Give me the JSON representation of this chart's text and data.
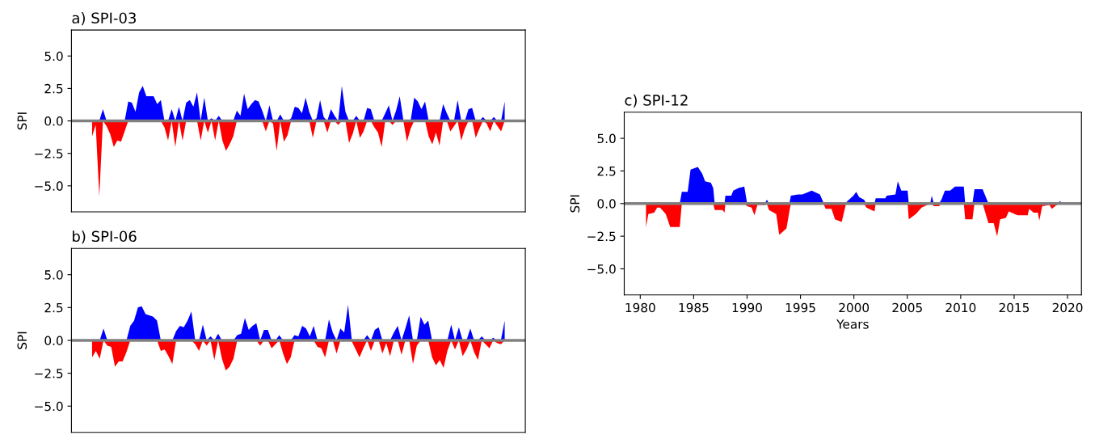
{
  "chart_data": [
    {
      "type": "area",
      "title": "a) SPI-03",
      "ylabel": "SPI",
      "ylim": [
        -7,
        7
      ],
      "yticks": [
        {
          "value": -5,
          "label": "−5.0"
        },
        {
          "value": -2.5,
          "label": "−2.5"
        },
        {
          "value": 0,
          "label": "0.0"
        },
        {
          "value": 2.5,
          "label": "2.5"
        },
        {
          "value": 5,
          "label": "5.0"
        }
      ],
      "tick_labels": "y",
      "categories": [
        null,
        null,
        null,
        null,
        null,
        null,
        null,
        null,
        null,
        null,
        null,
        null,
        null,
        null,
        null,
        null,
        null,
        null,
        null,
        null,
        null,
        null,
        null,
        null,
        null,
        null,
        null,
        null,
        null,
        null,
        null,
        null,
        null,
        null,
        null,
        null,
        null,
        null,
        null,
        null,
        null,
        null,
        null,
        null,
        null,
        null,
        null,
        null,
        null,
        null,
        null,
        null,
        null,
        null,
        null,
        null,
        null,
        null,
        null,
        null,
        null,
        null,
        null,
        null,
        null,
        null,
        null,
        null,
        null,
        null,
        null,
        null,
        null,
        null,
        null,
        null,
        null,
        null,
        null,
        null,
        null,
        null,
        null,
        null,
        null,
        null,
        null,
        null,
        null,
        null,
        null,
        null,
        null,
        null,
        null,
        null,
        null,
        null,
        null,
        null,
        null,
        null,
        null,
        null,
        null,
        null,
        null,
        null,
        null,
        null,
        null,
        null,
        null,
        null,
        null
      ],
      "series": [
        {
          "color": "#0000ff",
          "values": [
            0,
            0,
            0,
            0.9,
            0,
            0,
            0,
            0,
            0,
            0,
            1.5,
            1.4,
            0.7,
            2.2,
            2.7,
            1.9,
            1.9,
            1.9,
            1.3,
            1.6,
            0,
            0,
            0.9,
            0,
            1.1,
            0,
            1.4,
            1.6,
            1.1,
            2.2,
            0,
            1.8,
            0,
            0.2,
            0,
            0.4,
            0,
            0,
            0,
            0,
            0.8,
            0.4,
            2.1,
            0.9,
            1.3,
            1.6,
            1.5,
            0.8,
            0,
            1.2,
            0,
            0,
            0.5,
            0,
            0,
            0.2,
            1.1,
            1.0,
            0.6,
            1.8,
            0.7,
            0,
            0.2,
            1.6,
            0.3,
            0,
            0.9,
            0.4,
            0,
            2.7,
            0.7,
            0,
            0,
            0.4,
            0,
            0,
            1.0,
            0.9,
            0,
            0,
            0,
            0.6,
            1.2,
            0,
            0.8,
            1.9,
            0.1,
            0,
            0,
            1.8,
            1.5,
            0.9,
            1.5,
            0,
            0,
            0,
            0,
            1.3,
            0.6,
            0,
            0,
            1.6,
            0,
            0,
            0.9,
            1.0,
            0,
            0,
            0.3,
            0,
            0,
            0.3,
            0,
            0,
            1.5
          ]
        },
        {
          "color": "#ff0000",
          "values": [
            -1.2,
            -0.3,
            -5.8,
            0,
            -0.4,
            -1.0,
            -2.0,
            -1.5,
            -1.6,
            -0.8,
            0,
            0,
            0,
            0,
            0,
            0,
            0,
            0,
            0,
            0,
            -0.5,
            -1.5,
            0,
            -2.0,
            0,
            -1.5,
            0,
            0,
            0,
            0,
            -1.5,
            0,
            -0.9,
            0,
            -1.5,
            0,
            -1.5,
            -2.3,
            -1.8,
            -1.2,
            0,
            0,
            0,
            0,
            0,
            0,
            0,
            0,
            -0.8,
            0,
            -0.2,
            -2.3,
            0,
            -1.6,
            -1.1,
            0,
            0,
            0,
            0,
            0,
            0,
            -1.3,
            0,
            0,
            0,
            -0.9,
            0,
            0,
            -0.3,
            0,
            0,
            -1.7,
            -1.0,
            0,
            -1.3,
            -0.8,
            0,
            0,
            -0.5,
            -0.9,
            -2.0,
            0,
            0,
            -0.3,
            0,
            0,
            0,
            -1.6,
            -0.6,
            0,
            0,
            0,
            0,
            -1.2,
            -1.8,
            -0.9,
            -1.9,
            0,
            0,
            -0.8,
            -0.4,
            0,
            -1.5,
            -0.6,
            0,
            0,
            -1.3,
            -0.6,
            0,
            -0.2,
            -0.8,
            0,
            -0.4,
            -0.8,
            0
          ]
        }
      ],
      "ref_lines": [
        {
          "axis": "y",
          "value": 0,
          "color": "#808080"
        }
      ]
    },
    {
      "type": "area",
      "title": "b) SPI-06",
      "ylabel": "SPI",
      "ylim": [
        -7,
        7
      ],
      "yticks": [
        {
          "value": -5,
          "label": "−5.0"
        },
        {
          "value": -2.5,
          "label": "−2.5"
        },
        {
          "value": 0,
          "label": "0.0"
        },
        {
          "value": 2.5,
          "label": "2.5"
        },
        {
          "value": 5,
          "label": "5.0"
        }
      ],
      "tick_labels": "y",
      "categories": [
        null,
        null,
        null,
        null,
        null,
        null,
        null,
        null,
        null,
        null,
        null,
        null,
        null,
        null,
        null,
        null,
        null,
        null,
        null,
        null,
        null,
        null,
        null,
        null,
        null,
        null,
        null,
        null,
        null,
        null,
        null,
        null,
        null,
        null,
        null,
        null,
        null,
        null,
        null,
        null,
        null,
        null,
        null,
        null,
        null,
        null,
        null,
        null,
        null,
        null,
        null,
        null,
        null,
        null,
        null,
        null,
        null,
        null,
        null,
        null,
        null,
        null,
        null,
        null,
        null,
        null,
        null,
        null,
        null,
        null,
        null,
        null,
        null,
        null,
        null,
        null,
        null,
        null,
        null,
        null,
        null,
        null,
        null,
        null,
        null,
        null,
        null,
        null,
        null,
        null,
        null,
        null,
        null,
        null,
        null,
        null,
        null,
        null,
        null,
        null,
        null,
        null,
        null,
        null,
        null,
        null,
        null,
        null,
        null
      ],
      "series": [
        {
          "color": "#0000ff",
          "values": [
            0,
            0,
            0,
            0.9,
            0,
            0,
            0,
            0,
            0,
            0,
            1.1,
            1.5,
            2.5,
            2.6,
            2.0,
            1.9,
            1.8,
            1.5,
            0,
            0,
            0,
            0,
            0.7,
            1.1,
            1.0,
            1.5,
            2.2,
            0,
            0,
            1.2,
            0,
            0.3,
            0,
            0.5,
            0,
            0,
            0,
            0,
            0.4,
            0.5,
            1.7,
            0.8,
            1.1,
            1.3,
            0,
            0.8,
            0.8,
            0,
            0,
            0.4,
            0,
            0,
            0,
            0.4,
            0.3,
            1.1,
            0.9,
            0.3,
            1.1,
            0,
            0,
            0,
            1.6,
            0.6,
            0,
            0.9,
            0.6,
            2.7,
            0,
            0,
            0,
            0,
            0.4,
            0,
            0.8,
            1.0,
            0,
            0,
            0,
            0.6,
            1.1,
            0,
            0.9,
            1.9,
            0,
            0,
            1.8,
            1.2,
            1.5,
            0,
            0,
            0,
            0,
            0,
            1.2,
            0,
            1.0,
            0,
            0,
            0.9,
            0,
            0,
            0.3,
            0,
            0,
            0.2,
            0,
            0,
            1.5
          ]
        },
        {
          "color": "#ff0000",
          "values": [
            -1.3,
            -0.8,
            -1.4,
            0,
            -0.4,
            -0.5,
            -2.0,
            -1.6,
            -1.6,
            -0.9,
            0,
            0,
            0,
            0,
            0,
            0,
            0,
            0,
            -0.8,
            -0.7,
            -1.2,
            -1.8,
            0,
            0,
            0,
            0,
            0,
            -0.3,
            -0.8,
            0,
            -0.4,
            0,
            -1.5,
            0,
            -1.4,
            -2.3,
            -2.0,
            -1.4,
            0,
            0,
            0,
            0,
            0,
            0,
            -0.4,
            0,
            0,
            -0.6,
            -0.3,
            0,
            -1.0,
            -1.8,
            -1.3,
            0,
            0,
            0,
            0,
            0,
            0,
            -0.5,
            -0.6,
            -1.3,
            0,
            0,
            -1.0,
            0,
            0,
            0,
            -0.1,
            -0.7,
            -1.3,
            -0.6,
            0,
            -0.8,
            0,
            0,
            -1.0,
            -0.2,
            -1.2,
            0,
            0,
            -1.1,
            0,
            0,
            -1.8,
            -0.4,
            0,
            0,
            0,
            -1.3,
            -1.9,
            -1.5,
            -2.1,
            -0.8,
            0,
            -0.7,
            0,
            -1.2,
            -0.7,
            0,
            -0.9,
            -1.5,
            0,
            -0.3,
            -0.6,
            0,
            -0.2,
            -0.3,
            0
          ]
        }
      ],
      "ref_lines": [
        {
          "axis": "y",
          "value": 0,
          "color": "#808080"
        }
      ]
    },
    {
      "type": "area",
      "title": "c) SPI-12",
      "xlabel": "Years",
      "ylabel": "SPI",
      "xlim": [
        1978.5,
        2021.3
      ],
      "ylim": [
        -7,
        7
      ],
      "xticks": [
        1980,
        1985,
        1990,
        1995,
        2000,
        2005,
        2010,
        2015,
        2020
      ],
      "yticks": [
        {
          "value": -5,
          "label": "−5.0"
        },
        {
          "value": -2.5,
          "label": "−2.5"
        },
        {
          "value": 0,
          "label": "0.0"
        },
        {
          "value": 2.5,
          "label": "2.5"
        },
        {
          "value": 5,
          "label": "5.0"
        }
      ],
      "x": [
        1980.54,
        1980.76,
        1981.31,
        1981.58,
        1981.85,
        1982.39,
        1982.8,
        1983.7,
        1983.89,
        1984.44,
        1984.71,
        1985.39,
        1985.8,
        1986.07,
        1986.61,
        1986.83,
        1986.97,
        1987.7,
        1987.89,
        1987.97,
        1988.52,
        1988.71,
        1989.2,
        1989.74,
        1990.01,
        1990.42,
        1990.69,
        1990.97,
        1991.65,
        1991.86,
        1992.05,
        1992.73,
        1993.01,
        1993.69,
        1993.96,
        1994.1,
        1994.78,
        1995.18,
        1996.05,
        1996.82,
        1997.14,
        1997.36,
        1997.9,
        1998.23,
        1998.86,
        1999.27,
        1999.95,
        2000.22,
        2000.49,
        2000.95,
        2001.17,
        2001.93,
        2002.04,
        2002.94,
        2003.07,
        2003.89,
        2004.11,
        2004.44,
        2005.03,
        2005.14,
        2005.8,
        2006.34,
        2007.16,
        2007.29,
        2007.48,
        2007.97,
        2008.19,
        2008.52,
        2009.01,
        2009.47,
        2010.29,
        2010.42,
        2011.1,
        2011.29,
        2012.05,
        2012.6,
        2013.09,
        2013.41,
        2013.69,
        2014.23,
        2014.5,
        2015.32,
        2016.27,
        2016.41,
        2016.82,
        2017.22,
        2017.36,
        2017.63,
        2018.31,
        2018.53,
        2018.99,
        2019.35
      ],
      "series": [
        {
          "color": "#0000ff",
          "values": [
            0,
            0,
            0,
            0,
            0,
            0,
            0,
            0,
            0.9,
            0.9,
            2.6,
            2.8,
            2.3,
            1.7,
            1.6,
            1.2,
            0,
            0,
            0,
            0.6,
            0.6,
            1.0,
            1.2,
            1.3,
            0,
            0,
            0,
            0,
            0,
            0.3,
            0,
            0,
            0,
            0,
            0,
            0.6,
            0.7,
            0.7,
            1.0,
            0.7,
            0.1,
            0,
            0,
            0,
            0,
            0.1,
            0.6,
            0.9,
            0.5,
            0.3,
            0,
            0,
            0.4,
            0.4,
            0.6,
            0.7,
            1.7,
            1.0,
            1.0,
            0,
            0,
            0,
            0.1,
            0.6,
            0,
            0,
            0.3,
            1.0,
            1.0,
            1.3,
            1.3,
            0,
            0,
            1.1,
            1.1,
            0,
            0,
            0,
            0,
            0,
            0,
            0,
            0,
            0,
            0,
            0,
            0,
            0,
            0,
            0,
            0,
            0.2
          ]
        },
        {
          "color": "#ff0000",
          "values": [
            -1.8,
            -0.8,
            -0.7,
            -0.3,
            -0.3,
            -0.8,
            -1.8,
            -1.8,
            0,
            0,
            0,
            0,
            0,
            0,
            0,
            0,
            -0.5,
            -0.5,
            -0.7,
            0,
            0,
            0,
            0,
            0,
            -0.2,
            -0.3,
            -0.9,
            -0.1,
            -0.1,
            0,
            -0.5,
            -0.8,
            -2.4,
            -1.9,
            -0.6,
            0,
            0,
            0,
            0,
            0,
            0,
            -0.4,
            -0.4,
            -1.2,
            -1.4,
            0,
            0,
            0,
            0,
            0,
            -0.3,
            -0.6,
            0,
            0,
            0,
            0,
            0,
            0,
            0,
            -1.2,
            -0.8,
            -0.3,
            0,
            0,
            -0.2,
            -0.2,
            0,
            0,
            0,
            0,
            0,
            -1.2,
            -1.2,
            0,
            0,
            -1.5,
            -1.5,
            -2.5,
            -1.2,
            -1.1,
            -0.6,
            -0.9,
            -0.9,
            -0.4,
            -0.7,
            -0.7,
            -1.3,
            -0.2,
            -0.1,
            -0.4,
            -0.1,
            0
          ]
        }
      ],
      "ref_lines": [
        {
          "axis": "y",
          "value": 0,
          "color": "#808080"
        }
      ]
    }
  ]
}
